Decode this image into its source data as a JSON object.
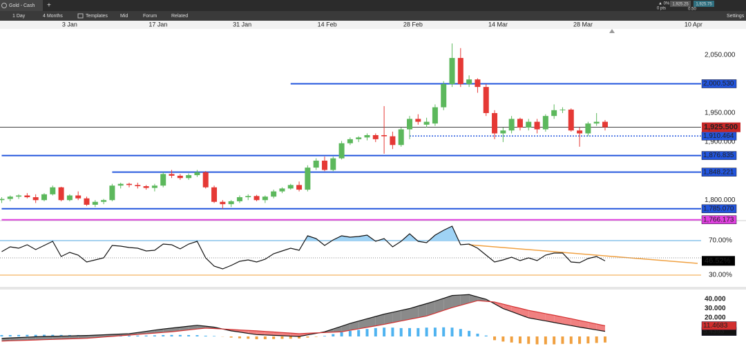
{
  "toolbar": {
    "tab": "Gold - Cash",
    "add": "+",
    "interval": "1 Day",
    "range": "4 Months",
    "templates": "Templates",
    "price_type": "Mid",
    "forum": "Forum",
    "related": "Related",
    "settings": "Settings"
  },
  "quote": {
    "change": "▲ 0%",
    "points": "0 pts",
    "sell": "1,925.25",
    "buy": "1,925.75",
    "spread": "0.50"
  },
  "chart_data": [
    {
      "type": "candlestick",
      "up_color": "#5cb85c",
      "down_color": "#e53935",
      "xlim": [
        -0.2,
        82.3
      ],
      "xticks": [
        {
          "value": 8,
          "label": "3 Jan"
        },
        {
          "value": 18.4,
          "label": "17 Jan"
        },
        {
          "value": 28.3,
          "label": "31 Jan"
        },
        {
          "value": 38.3,
          "label": "14 Feb"
        },
        {
          "value": 48.4,
          "label": "28 Feb"
        },
        {
          "value": 58.4,
          "label": "14 Mar"
        },
        {
          "value": 68.4,
          "label": "28 Mar"
        },
        {
          "value": 81.4,
          "label": "10 Apr"
        }
      ],
      "ylim": [
        1767,
        2095
      ],
      "yticks": [
        {
          "value": 2050,
          "label": "2,050.000"
        },
        {
          "value": 1950,
          "label": "1,950.000"
        },
        {
          "value": 1900,
          "label": "1,900.000"
        },
        {
          "value": 1800,
          "label": "1,800.000"
        }
      ],
      "current_price": 1925.5,
      "current_price_label": "1,925.500",
      "levels": [
        {
          "value": 2000.53,
          "label": "2,000.530",
          "start": 34,
          "color": "#2255dd",
          "style": "solid"
        },
        {
          "value": 1910.464,
          "label": "1,910.464",
          "start": 48,
          "color": "#2255dd",
          "style": "dotted"
        },
        {
          "value": 1876.835,
          "label": "1,876.835",
          "start": 0,
          "color": "#2255dd",
          "style": "solid"
        },
        {
          "value": 1848.221,
          "label": "1,848.221",
          "start": 13,
          "color": "#2255dd",
          "style": "solid"
        },
        {
          "value": 1785.07,
          "label": "1,785.070",
          "start": 0,
          "color": "#2255dd",
          "style": "solid"
        },
        {
          "value": 1766.173,
          "label": "1,766.173",
          "start": 0,
          "color": "#e040e0",
          "style": "solid"
        }
      ],
      "ohlc": [
        [
          1800,
          1805,
          1795,
          1802
        ],
        [
          1802,
          1808,
          1798,
          1806
        ],
        [
          1806,
          1810,
          1802,
          1808
        ],
        [
          1808,
          1812,
          1803,
          1805
        ],
        [
          1805,
          1810,
          1795,
          1800
        ],
        [
          1800,
          1812,
          1798,
          1810
        ],
        [
          1810,
          1825,
          1808,
          1822
        ],
        [
          1822,
          1823,
          1798,
          1800
        ],
        [
          1800,
          1810,
          1798,
          1808
        ],
        [
          1808,
          1815,
          1800,
          1803
        ],
        [
          1803,
          1806,
          1790,
          1792
        ],
        [
          1792,
          1800,
          1788,
          1797
        ],
        [
          1797,
          1802,
          1793,
          1800
        ],
        [
          1800,
          1828,
          1798,
          1825
        ],
        [
          1825,
          1830,
          1820,
          1828
        ],
        [
          1828,
          1830,
          1822,
          1826
        ],
        [
          1826,
          1830,
          1820,
          1824
        ],
        [
          1824,
          1826,
          1818,
          1821
        ],
        [
          1821,
          1828,
          1815,
          1825
        ],
        [
          1825,
          1848,
          1822,
          1845
        ],
        [
          1845,
          1852,
          1838,
          1842
        ],
        [
          1842,
          1845,
          1835,
          1838
        ],
        [
          1838,
          1846,
          1835,
          1843
        ],
        [
          1843,
          1852,
          1840,
          1848
        ],
        [
          1848,
          1850,
          1820,
          1822
        ],
        [
          1822,
          1825,
          1795,
          1797
        ],
        [
          1797,
          1800,
          1785,
          1793
        ],
        [
          1793,
          1800,
          1788,
          1798
        ],
        [
          1798,
          1808,
          1795,
          1805
        ],
        [
          1805,
          1810,
          1800,
          1807
        ],
        [
          1807,
          1809,
          1798,
          1800
        ],
        [
          1800,
          1808,
          1795,
          1806
        ],
        [
          1806,
          1818,
          1803,
          1815
        ],
        [
          1815,
          1822,
          1812,
          1820
        ],
        [
          1820,
          1828,
          1818,
          1826
        ],
        [
          1826,
          1832,
          1815,
          1818
        ],
        [
          1818,
          1860,
          1815,
          1856
        ],
        [
          1856,
          1872,
          1852,
          1868
        ],
        [
          1868,
          1875,
          1850,
          1852
        ],
        [
          1852,
          1875,
          1850,
          1872
        ],
        [
          1872,
          1902,
          1870,
          1898
        ],
        [
          1898,
          1908,
          1895,
          1905
        ],
        [
          1905,
          1910,
          1900,
          1908
        ],
        [
          1908,
          1915,
          1903,
          1912
        ],
        [
          1912,
          1915,
          1900,
          1905
        ],
        [
          1912,
          1962,
          1880,
          1910
        ],
        [
          1910,
          1918,
          1888,
          1895
        ],
        [
          1895,
          1925,
          1892,
          1922
        ],
        [
          1922,
          1945,
          1905,
          1940
        ],
        [
          1940,
          1948,
          1930,
          1935
        ],
        [
          1930,
          1942,
          1925,
          1935
        ],
        [
          1932,
          1965,
          1928,
          1960
        ],
        [
          1960,
          2005,
          1955,
          2000
        ],
        [
          2000,
          2070,
          1995,
          2045
        ],
        [
          2045,
          2062,
          1995,
          2000
        ],
        [
          2000,
          2015,
          1995,
          2008
        ],
        [
          2008,
          2010,
          1985,
          1995
        ],
        [
          1995,
          2000,
          1945,
          1950
        ],
        [
          1950,
          1955,
          1905,
          1915
        ],
        [
          1915,
          1925,
          1900,
          1920
        ],
        [
          1920,
          1945,
          1915,
          1940
        ],
        [
          1940,
          1942,
          1920,
          1925
        ],
        [
          1925,
          1940,
          1920,
          1935
        ],
        [
          1935,
          1940,
          1915,
          1922
        ],
        [
          1922,
          1948,
          1918,
          1945
        ],
        [
          1945,
          1965,
          1940,
          1955
        ],
        [
          1955,
          1960,
          1950,
          1956
        ],
        [
          1956,
          1958,
          1918,
          1920
        ],
        [
          1920,
          1925,
          1892,
          1915
        ],
        [
          1915,
          1935,
          1910,
          1932
        ],
        [
          1932,
          1950,
          1928,
          1935
        ],
        [
          1935,
          1938,
          1920,
          1925.5
        ]
      ]
    },
    {
      "type": "rsi",
      "ylim": [
        19.6,
        91.6
      ],
      "yticks": [
        {
          "value": 70,
          "label": "70.00%"
        },
        {
          "value": 30,
          "label": "30.00%"
        }
      ],
      "grid_colors": [
        "#4aa3df",
        "#f2a23a"
      ],
      "midline": 50,
      "fill_color": "#9fd3f5",
      "color": "#111111",
      "current_label": "46.52%",
      "values": [
        57.2,
        62.8,
        61.2,
        65.2,
        59.6,
        64.4,
        69.2,
        51.6,
        56.4,
        53.2,
        45.2,
        47.6,
        50,
        64.4,
        63.6,
        62,
        61.2,
        58,
        58.8,
        66,
        65.2,
        60.4,
        66,
        69.2,
        50,
        40.4,
        37.2,
        41.2,
        46,
        47.6,
        45.2,
        48.4,
        54.8,
        58,
        61.2,
        58.8,
        75.6,
        72.4,
        64.4,
        70.8,
        75.6,
        74,
        74.8,
        76.4,
        69.2,
        72.4,
        62.8,
        69.2,
        78,
        69.2,
        67.6,
        76.4,
        82,
        86.8,
        65.2,
        66,
        61.2,
        53.2,
        45.2,
        47.6,
        50.8,
        46.8,
        50,
        46.8,
        53.2,
        55.6,
        55.6,
        45.2,
        44.4,
        49.2,
        51.6,
        46.52
      ]
    },
    {
      "type": "macd",
      "ylim": [
        -17.8,
        50.4
      ],
      "yticks": [
        {
          "value": 40,
          "label": "40.000"
        },
        {
          "value": 30,
          "label": "30.000"
        },
        {
          "value": 20,
          "label": "20.000"
        }
      ],
      "series": [
        {
          "kind": "line",
          "color": "#111111",
          "fill_color": "#8a8a8a",
          "values": [
            -2,
            -1.6,
            -1.2,
            -0.8,
            -0.4,
            0,
            0.2,
            0.4,
            0.6,
            0.8,
            1,
            1.4,
            1.8,
            2.2,
            2.6,
            3,
            4.2,
            5.5,
            6.8,
            8,
            9,
            10,
            11,
            12,
            11,
            10,
            8,
            6,
            4.7,
            3.3,
            2,
            1.6,
            1.2,
            0.8,
            0.4,
            0,
            1.7,
            3.3,
            5,
            8,
            11,
            14,
            16.5,
            19,
            21.5,
            24,
            26,
            28,
            30,
            32.7,
            35.3,
            38,
            41,
            44,
            44.5,
            45,
            42.5,
            40,
            35,
            30,
            26.7,
            23.3,
            20,
            18.3,
            16.7,
            15,
            13.3,
            11.7,
            10,
            8.5,
            7,
            5.4393
          ]
        },
        {
          "kind": "line",
          "color": "#d32f2f",
          "fill_color": "#f08080",
          "values": [
            -5,
            -4.7,
            -4.4,
            -4.1,
            -3.8,
            -3.5,
            -3.2,
            -2.9,
            -2.6,
            -2.3,
            -2,
            -1.3,
            -0.6,
            0.1,
            0.8,
            1.5,
            2.2,
            2.9,
            3.6,
            4.3,
            5,
            6,
            7,
            8,
            9,
            8.5,
            8,
            7.5,
            7,
            6.5,
            6,
            5.4,
            4.8,
            4.2,
            3.6,
            3,
            3.4,
            3.8,
            4.2,
            4.6,
            5,
            6.6,
            8.2,
            9.8,
            11.4,
            13,
            14.8,
            16.6,
            18.4,
            20.2,
            22,
            25,
            28,
            31,
            33.5,
            36,
            38.5,
            37.8,
            37,
            34.8,
            32.5,
            30.3,
            28,
            26.3,
            24.5,
            22.8,
            21,
            19.1,
            17.2,
            15.3,
            13.4,
            11.4683
          ]
        },
        {
          "kind": "histogram",
          "color": "#4fb3f0",
          "negative_color": "#f0a040",
          "values": [
            1.5,
            1.5,
            1.6,
            1.7,
            1.7,
            1.8,
            1.7,
            1.6,
            1.5,
            1.5,
            1.4,
            1.3,
            1.2,
            1.1,
            0.9,
            0.8,
            0.9,
            1,
            1.2,
            1.5,
            1.6,
            1.6,
            1.5,
            1.4,
            0.8,
            0.5,
            -0.2,
            -1.2,
            -2,
            -2.5,
            -3,
            -3,
            -2.8,
            -2.6,
            -2.4,
            -2.2,
            -1.2,
            -0.4,
            0.6,
            2.5,
            4.5,
            6,
            7,
            8,
            9,
            9.5,
            9.5,
            9,
            9,
            9,
            9.5,
            9.5,
            9.8,
            9.5,
            8,
            6,
            3,
            1,
            -4,
            -5.5,
            -6.5,
            -7.5,
            -8,
            -8.5,
            -8.5,
            -8.5,
            -8,
            -8,
            -8,
            -7.5,
            -7,
            -6.5
          ]
        }
      ]
    }
  ]
}
